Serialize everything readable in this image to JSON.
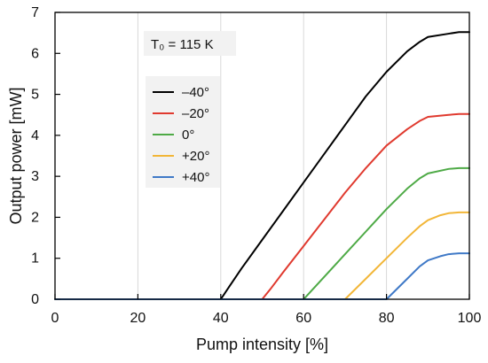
{
  "chart_data": {
    "type": "line",
    "xlabel": "Pump intensity [%]",
    "ylabel": "Output power [mW]",
    "xlim": [
      0,
      100
    ],
    "ylim": [
      0,
      7
    ],
    "x_ticks": [
      "0",
      "20",
      "40",
      "60",
      "80",
      "100"
    ],
    "y_ticks": [
      "0",
      "1",
      "2",
      "3",
      "4",
      "5",
      "6",
      "7"
    ],
    "grid": "vertical",
    "legend_position": "top-left",
    "annotation": {
      "label": "T₀ = 115 K"
    },
    "series": [
      {
        "name": "–40°",
        "color": "#000000",
        "points": [
          [
            0,
            0
          ],
          [
            40,
            0
          ],
          [
            42,
            0.3
          ],
          [
            45,
            0.75
          ],
          [
            50,
            1.45
          ],
          [
            55,
            2.15
          ],
          [
            60,
            2.85
          ],
          [
            65,
            3.55
          ],
          [
            70,
            4.25
          ],
          [
            75,
            4.95
          ],
          [
            80,
            5.55
          ],
          [
            85,
            6.05
          ],
          [
            88,
            6.28
          ],
          [
            90,
            6.4
          ],
          [
            95,
            6.48
          ],
          [
            97.5,
            6.52
          ],
          [
            100,
            6.52
          ]
        ]
      },
      {
        "name": "–20°",
        "color": "#e03a2f",
        "points": [
          [
            0,
            0
          ],
          [
            50,
            0
          ],
          [
            52,
            0.25
          ],
          [
            55,
            0.65
          ],
          [
            60,
            1.3
          ],
          [
            65,
            1.95
          ],
          [
            70,
            2.6
          ],
          [
            75,
            3.2
          ],
          [
            80,
            3.75
          ],
          [
            85,
            4.15
          ],
          [
            88,
            4.35
          ],
          [
            90,
            4.45
          ],
          [
            95,
            4.5
          ],
          [
            97.5,
            4.52
          ],
          [
            100,
            4.52
          ]
        ]
      },
      {
        "name": "0°",
        "color": "#4eaa46",
        "points": [
          [
            0,
            0
          ],
          [
            60,
            0
          ],
          [
            62,
            0.22
          ],
          [
            65,
            0.55
          ],
          [
            70,
            1.1
          ],
          [
            75,
            1.65
          ],
          [
            80,
            2.2
          ],
          [
            85,
            2.7
          ],
          [
            88,
            2.95
          ],
          [
            90,
            3.07
          ],
          [
            95,
            3.18
          ],
          [
            97.5,
            3.2
          ],
          [
            100,
            3.2
          ]
        ]
      },
      {
        "name": "+20°",
        "color": "#f2b638",
        "points": [
          [
            0,
            0
          ],
          [
            70,
            0
          ],
          [
            72,
            0.2
          ],
          [
            75,
            0.5
          ],
          [
            80,
            1.0
          ],
          [
            85,
            1.5
          ],
          [
            88,
            1.78
          ],
          [
            90,
            1.93
          ],
          [
            93,
            2.05
          ],
          [
            95,
            2.1
          ],
          [
            97.5,
            2.12
          ],
          [
            100,
            2.12
          ]
        ]
      },
      {
        "name": "+40°",
        "color": "#3f79c7",
        "points": [
          [
            0,
            0
          ],
          [
            80,
            0
          ],
          [
            82,
            0.2
          ],
          [
            85,
            0.5
          ],
          [
            88,
            0.8
          ],
          [
            90,
            0.95
          ],
          [
            93,
            1.05
          ],
          [
            95,
            1.1
          ],
          [
            97.5,
            1.12
          ],
          [
            100,
            1.12
          ]
        ]
      }
    ]
  }
}
